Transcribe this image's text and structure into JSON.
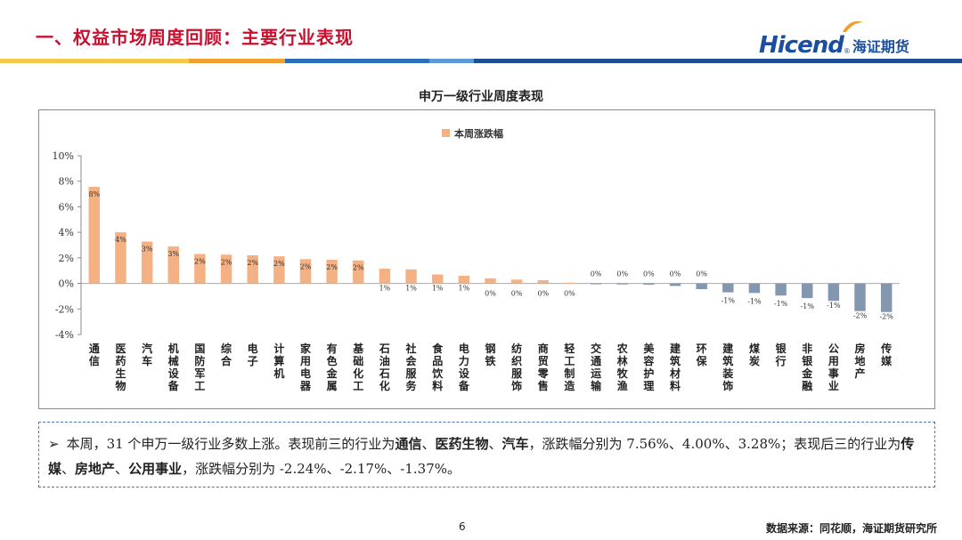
{
  "header": {
    "title": "一、权益市场周度回顾：主要行业表现",
    "logo_en": "Hicend",
    "logo_reg": "®",
    "logo_cn": "海证期货"
  },
  "colors": {
    "accent_red": "#c8102e",
    "brand_blue": "#1a4fa0",
    "bar_up": "#f4b183",
    "bar_down": "#8497b0",
    "bar_yellow": "#f2c94c",
    "bar_orange": "#f0a030",
    "bar_navy": "#1f4e96",
    "bar_lightblue": "#5b9bd5"
  },
  "chart_data": {
    "type": "bar",
    "title": "申万一级行业周度表现",
    "legend": "本周涨跌幅",
    "legend_position": "top-center",
    "ylim": [
      -4,
      10
    ],
    "yticks": [
      "10%",
      "8%",
      "6%",
      "4%",
      "2%",
      "0%",
      "-2%",
      "-4%"
    ],
    "ytick_values": [
      10,
      8,
      6,
      4,
      2,
      0,
      -2,
      -4
    ],
    "grid": false,
    "categories": [
      "通信",
      "医药生物",
      "汽车",
      "机械设备",
      "国防军工",
      "综合",
      "电子",
      "计算机",
      "家用电器",
      "有色金属",
      "基础化工",
      "石油石化",
      "社会服务",
      "食品饮料",
      "电力设备",
      "钢铁",
      "纺织服饰",
      "商贸零售",
      "轻工制造",
      "交通运输",
      "农林牧渔",
      "美容护理",
      "建筑材料",
      "环保",
      "建筑装饰",
      "煤炭",
      "银行",
      "非银金融",
      "公用事业",
      "房地产",
      "传媒"
    ],
    "values": [
      7.56,
      4.0,
      3.28,
      2.9,
      2.3,
      2.25,
      2.2,
      2.12,
      1.9,
      1.85,
      1.8,
      1.15,
      1.1,
      0.7,
      0.6,
      0.4,
      0.3,
      0.25,
      0.05,
      -0.05,
      -0.08,
      -0.1,
      -0.2,
      -0.45,
      -0.7,
      -0.75,
      -0.95,
      -1.15,
      -1.37,
      -2.17,
      -2.24
    ],
    "data_labels": [
      "8%",
      "4%",
      "3%",
      "3%",
      "2%",
      "2%",
      "2%",
      "2%",
      "2%",
      "2%",
      "2%",
      "1%",
      "1%",
      "1%",
      "1%",
      "0%",
      "0%",
      "0%",
      "0%",
      "0%",
      "0%",
      "0%",
      "0%",
      "0%",
      "-1%",
      "-1%",
      "-1%",
      "-1%",
      "-1%",
      "-2%",
      "-2%"
    ]
  },
  "summary": {
    "bullet": "➢",
    "p1": "本周，31 个申万一级行业多数上涨。表现前三的行业为",
    "top1": "通信",
    "sep1": "、",
    "top2": "医药生物",
    "sep2": "、",
    "top3": "汽车",
    "p2": "，涨跌幅分别为 7.56%、4.00%、3.28%；表现后三的行业为",
    "bot1": "传媒",
    "sep3": "、",
    "bot2": "房地产",
    "sep4": "、",
    "bot3": "公用事业",
    "p3": "，涨跌幅分别为 -2.24%、-2.17%、-1.37%。"
  },
  "footer": {
    "page_number": "6",
    "source": "数据来源：同花顺，海证期货研究所"
  }
}
